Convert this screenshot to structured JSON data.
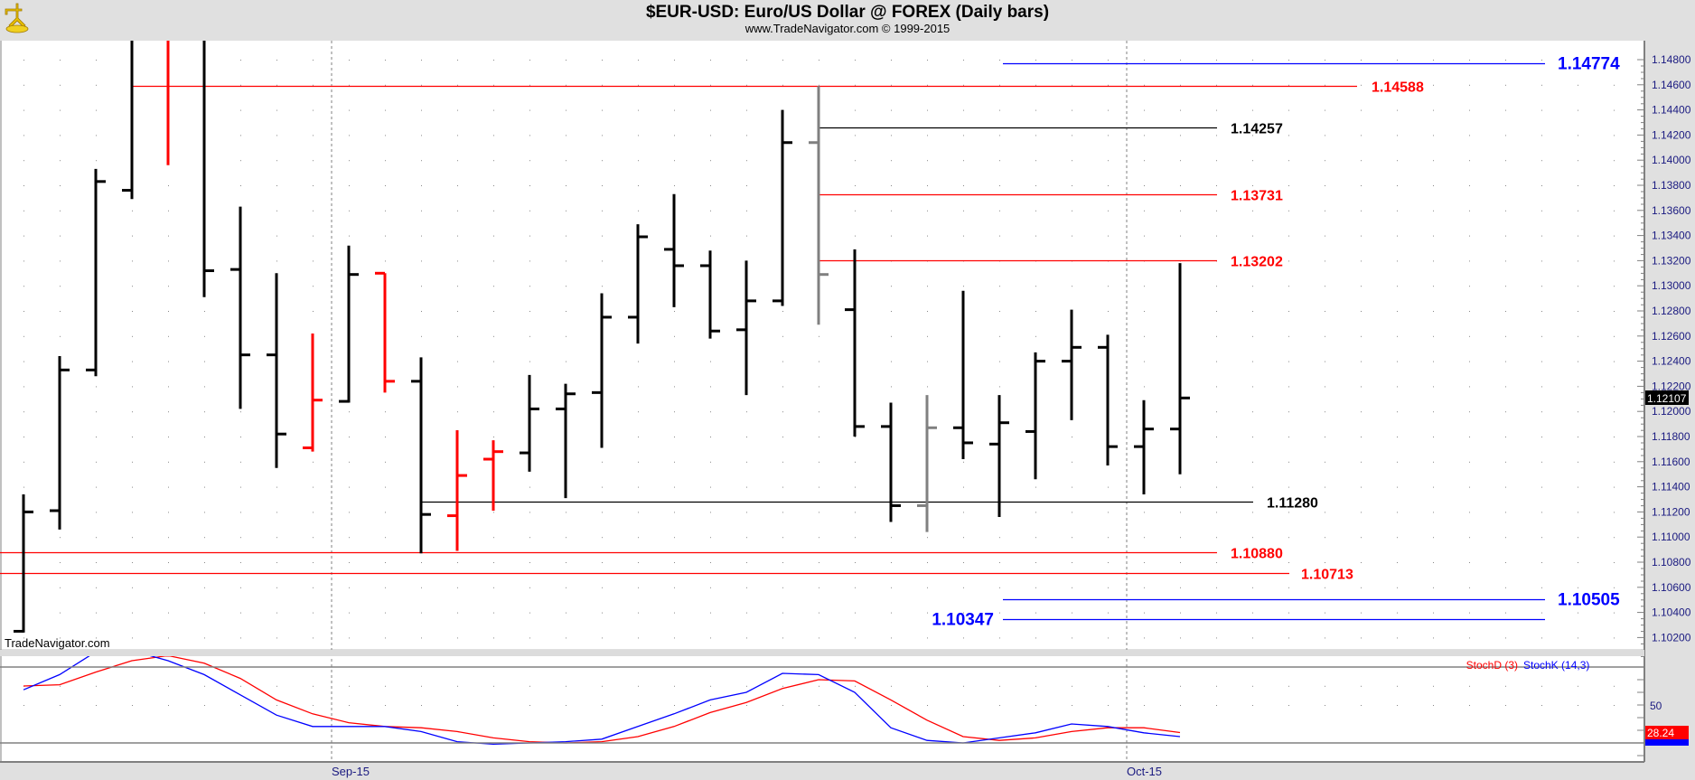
{
  "header": {
    "title": "$EUR-USD:  Euro/US Dollar @ FOREX  (Daily bars)",
    "subtitle": "www.TradeNavigator.com © 1999-2015",
    "watermark": "TradeNavigator.com",
    "logo_icon": "sextant-logo-icon"
  },
  "chart_data": [
    {
      "type": "ohlc",
      "title": "$EUR-USD:  Euro/US Dollar @ FOREX  (Daily bars)",
      "ylim": [
        1.101,
        1.1495
      ],
      "y_ticks": [
        "1.10200",
        "1.10400",
        "1.10600",
        "1.10800",
        "1.11000",
        "1.11200",
        "1.11400",
        "1.11600",
        "1.11800",
        "1.12000",
        "1.12200",
        "1.12400",
        "1.12600",
        "1.12800",
        "1.13000",
        "1.13200",
        "1.13400",
        "1.13600",
        "1.13800",
        "1.14000",
        "1.14200",
        "1.14400",
        "1.14600",
        "1.14800"
      ],
      "x_labels": [
        {
          "bar": 8.5,
          "label": "Sep-15"
        },
        {
          "bar": 30.5,
          "label": "Oct-15"
        }
      ],
      "last_price": "1.12107",
      "colors": {
        "up": "#000000",
        "red": "#ff0000",
        "gray": "#808080"
      },
      "bars": [
        {
          "o": 1.1025,
          "h": 1.1134,
          "l": 1.1024,
          "c": 1.112,
          "k": "up"
        },
        {
          "o": 1.1121,
          "h": 1.1244,
          "l": 1.1106,
          "c": 1.1233,
          "k": "up"
        },
        {
          "o": 1.1233,
          "h": 1.1393,
          "l": 1.1228,
          "c": 1.1383,
          "k": "up"
        },
        {
          "o": 1.1376,
          "h": 1.153,
          "l": 1.1369,
          "c": 1.151,
          "k": "up"
        },
        {
          "o": 1.151,
          "h": 1.153,
          "l": 1.1396,
          "c": 1.15,
          "k": "red"
        },
        {
          "o": 1.152,
          "h": 1.153,
          "l": 1.1291,
          "c": 1.1312,
          "k": "up"
        },
        {
          "o": 1.1313,
          "h": 1.1363,
          "l": 1.1202,
          "c": 1.1245,
          "k": "up"
        },
        {
          "o": 1.1245,
          "h": 1.131,
          "l": 1.1155,
          "c": 1.1182,
          "k": "up"
        },
        {
          "o": 1.1171,
          "h": 1.1262,
          "l": 1.1168,
          "c": 1.1209,
          "k": "red"
        },
        {
          "o": 1.1208,
          "h": 1.1332,
          "l": 1.1207,
          "c": 1.1309,
          "k": "up"
        },
        {
          "o": 1.131,
          "h": 1.131,
          "l": 1.1215,
          "c": 1.1224,
          "k": "red"
        },
        {
          "o": 1.1224,
          "h": 1.1243,
          "l": 1.1087,
          "c": 1.1118,
          "k": "up"
        },
        {
          "o": 1.1117,
          "h": 1.1185,
          "l": 1.1089,
          "c": 1.1149,
          "k": "red"
        },
        {
          "o": 1.1162,
          "h": 1.1177,
          "l": 1.1121,
          "c": 1.1168,
          "k": "red"
        },
        {
          "o": 1.1167,
          "h": 1.1229,
          "l": 1.1152,
          "c": 1.1202,
          "k": "up"
        },
        {
          "o": 1.1202,
          "h": 1.1222,
          "l": 1.1131,
          "c": 1.1214,
          "k": "up"
        },
        {
          "o": 1.1215,
          "h": 1.1294,
          "l": 1.1171,
          "c": 1.1275,
          "k": "up"
        },
        {
          "o": 1.1275,
          "h": 1.1349,
          "l": 1.1254,
          "c": 1.1339,
          "k": "up"
        },
        {
          "o": 1.1329,
          "h": 1.1373,
          "l": 1.1283,
          "c": 1.1316,
          "k": "up"
        },
        {
          "o": 1.1316,
          "h": 1.1328,
          "l": 1.1258,
          "c": 1.1264,
          "k": "up"
        },
        {
          "o": 1.1265,
          "h": 1.132,
          "l": 1.1213,
          "c": 1.1288,
          "k": "up"
        },
        {
          "o": 1.1288,
          "h": 1.144,
          "l": 1.1284,
          "c": 1.1414,
          "k": "up"
        },
        {
          "o": 1.1414,
          "h": 1.1459,
          "l": 1.1269,
          "c": 1.1309,
          "k": "gray"
        },
        {
          "o": 1.1281,
          "h": 1.1329,
          "l": 1.118,
          "c": 1.1188,
          "k": "up"
        },
        {
          "o": 1.1188,
          "h": 1.1207,
          "l": 1.1112,
          "c": 1.1125,
          "k": "up"
        },
        {
          "o": 1.1125,
          "h": 1.1213,
          "l": 1.1104,
          "c": 1.1187,
          "k": "gray"
        },
        {
          "o": 1.1187,
          "h": 1.1296,
          "l": 1.1162,
          "c": 1.1175,
          "k": "up"
        },
        {
          "o": 1.1174,
          "h": 1.1213,
          "l": 1.1116,
          "c": 1.1191,
          "k": "up"
        },
        {
          "o": 1.1184,
          "h": 1.1247,
          "l": 1.1146,
          "c": 1.124,
          "k": "up"
        },
        {
          "o": 1.124,
          "h": 1.1281,
          "l": 1.1193,
          "c": 1.1251,
          "k": "up"
        },
        {
          "o": 1.1251,
          "h": 1.1261,
          "l": 1.1157,
          "c": 1.1172,
          "k": "up"
        },
        {
          "o": 1.1172,
          "h": 1.1209,
          "l": 1.1134,
          "c": 1.1186,
          "k": "up"
        },
        {
          "o": 1.1186,
          "h": 1.1318,
          "l": 1.115,
          "c": 1.12107,
          "k": "up"
        }
      ],
      "levels": [
        {
          "price": 1.14774,
          "label": "1.14774",
          "color": "#0000ff"
        },
        {
          "price": 1.14588,
          "label": "1.14588",
          "color": "#ff0000"
        },
        {
          "price": 1.14257,
          "label": "1.14257",
          "color": "#000000"
        },
        {
          "price": 1.13731,
          "label": "1.13731",
          "color": "#ff0000"
        },
        {
          "price": 1.13202,
          "label": "1.13202",
          "color": "#ff0000"
        },
        {
          "price": 1.1128,
          "label": "1.11280",
          "color": "#000000"
        },
        {
          "price": 1.1088,
          "label": "1.10880",
          "color": "#ff0000"
        },
        {
          "price": 1.10713,
          "label": "1.10713",
          "color": "#ff0000"
        },
        {
          "price": 1.10505,
          "label": "1.10505",
          "color": "#0000ff"
        },
        {
          "price": 1.10347,
          "label": "1.10347",
          "color": "#0000ff"
        }
      ]
    },
    {
      "type": "line",
      "title": "Stochastics",
      "ylim": [
        5,
        88
      ],
      "y_ticks": [
        "50"
      ],
      "ref_lines": [
        20,
        80
      ],
      "legend": [
        {
          "name": "StochD (3)",
          "color": "#ff0000"
        },
        {
          "name": "StochK (14,3)",
          "color": "#0000ff"
        }
      ],
      "legend_position": "top-right",
      "last_value": "28.24",
      "series": [
        {
          "name": "StochK (14,3)",
          "color": "#0000ff",
          "values": [
            62,
            74,
            92,
            93,
            85,
            74,
            58,
            42,
            33,
            33,
            33,
            29,
            21,
            19,
            20,
            21,
            23,
            33,
            43,
            54,
            60,
            75,
            74,
            60,
            32,
            22,
            20,
            24,
            28,
            35,
            33,
            28,
            25
          ]
        },
        {
          "name": "StochD (3)",
          "color": "#ff0000",
          "values": [
            65,
            66,
            76,
            85,
            89,
            83,
            71,
            54,
            43,
            36,
            33,
            32,
            29,
            24,
            21,
            20,
            21,
            25,
            33,
            44,
            52,
            63,
            70,
            69,
            54,
            38,
            25,
            22,
            24,
            29,
            32,
            32,
            28.24
          ]
        }
      ]
    }
  ]
}
